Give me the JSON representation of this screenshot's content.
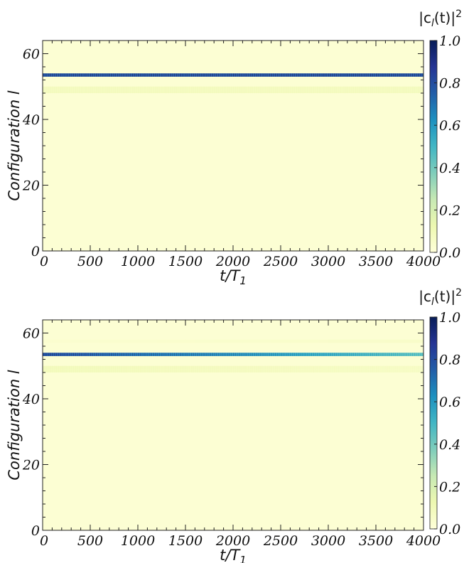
{
  "chart_data": [
    {
      "type": "heatmap",
      "xlabel": "t/T",
      "xlabel_sub": "1",
      "ylabel": "Configuration l",
      "xlim": [
        0,
        4000
      ],
      "ylim": [
        0,
        64
      ],
      "xticks": [
        "0",
        "500",
        "1000",
        "1500",
        "2000",
        "2500",
        "3000",
        "3500",
        "4000"
      ],
      "yticks": [
        "0",
        "20",
        "40",
        "60"
      ],
      "colorbar": {
        "label_main": "|c",
        "label_sub": "l",
        "label_mid": "(t)|",
        "label_sup": "2",
        "range": [
          0.0,
          1.0
        ],
        "ticks": [
          "0.0",
          "0.2",
          "0.4",
          "0.6",
          "0.8",
          "1.0"
        ],
        "colormap": "YlGnBu"
      },
      "background_value": 0.02,
      "bands": [
        {
          "configuration": 53,
          "start_value": 0.9,
          "end_value": 0.9,
          "striped": true
        },
        {
          "configuration": 49,
          "start_value": 0.09,
          "end_value": 0.09,
          "striped": true
        },
        {
          "configuration": 48,
          "start_value": 0.09,
          "end_value": 0.09,
          "striped": true
        }
      ]
    },
    {
      "type": "heatmap",
      "xlabel": "t/T",
      "xlabel_sub": "1",
      "ylabel": "Configuration l",
      "xlim": [
        0,
        4000
      ],
      "ylim": [
        0,
        64
      ],
      "xticks": [
        "0",
        "500",
        "1000",
        "1500",
        "2000",
        "2500",
        "3000",
        "3500",
        "4000"
      ],
      "yticks": [
        "0",
        "20",
        "40",
        "60"
      ],
      "colorbar": {
        "label_main": "|c",
        "label_sub": "l",
        "label_mid": "(t)|",
        "label_sup": "2",
        "range": [
          0.0,
          1.0
        ],
        "ticks": [
          "0.0",
          "0.2",
          "0.4",
          "0.6",
          "0.8",
          "1.0"
        ],
        "colormap": "YlGnBu"
      },
      "background_value": 0.02,
      "bands": [
        {
          "configuration": 57,
          "start_value": 0.03,
          "end_value": 0.05,
          "striped": false
        },
        {
          "configuration": 53,
          "start_value": 0.9,
          "end_value": 0.5,
          "striped": true
        },
        {
          "configuration": 49,
          "start_value": 0.1,
          "end_value": 0.07,
          "striped": true
        },
        {
          "configuration": 48,
          "start_value": 0.1,
          "end_value": 0.07,
          "striped": true
        }
      ]
    }
  ]
}
